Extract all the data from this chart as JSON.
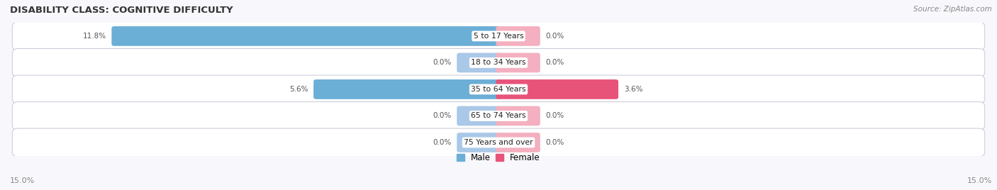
{
  "title": "DISABILITY CLASS: COGNITIVE DIFFICULTY",
  "source": "Source: ZipAtlas.com",
  "categories": [
    "5 to 17 Years",
    "18 to 34 Years",
    "35 to 64 Years",
    "65 to 74 Years",
    "75 Years and over"
  ],
  "male_values": [
    11.8,
    0.0,
    5.6,
    0.0,
    0.0
  ],
  "female_values": [
    0.0,
    0.0,
    3.6,
    0.0,
    0.0
  ],
  "x_max": 15.0,
  "stub_size": 1.2,
  "male_color": "#6baed6",
  "female_color": "#e8537a",
  "male_color_light": "#aac8e8",
  "female_color_light": "#f4b0c0",
  "bar_bg_color": "#f0f0f5",
  "bar_border_color": "#c8c8d8",
  "label_color": "#555555",
  "title_color": "#333333",
  "legend_male_color": "#6baed6",
  "legend_female_color": "#e8537a",
  "axis_label_color": "#888888",
  "source_color": "#888888",
  "bg_color": "#f8f8fc"
}
